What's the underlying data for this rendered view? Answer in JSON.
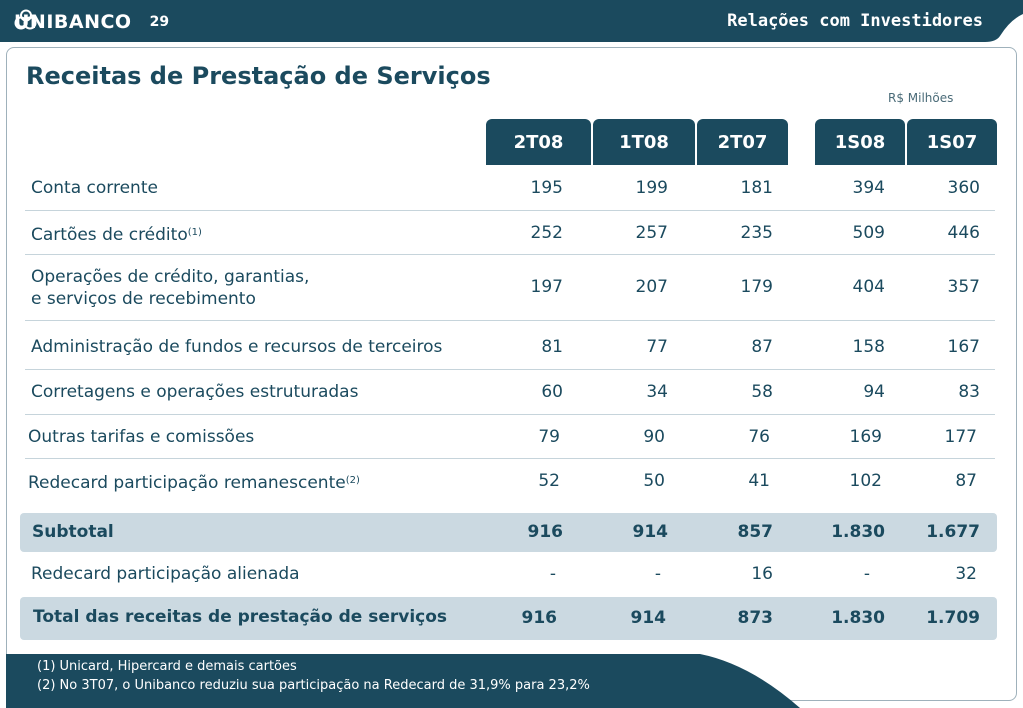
{
  "header": {
    "brand": "UNIBANCO",
    "page_number": "29",
    "section": "Relações com Investidores",
    "logo_icon": "unibanco-logo-icon"
  },
  "title": "Receitas de Prestação de Serviços",
  "unit": "R$ Milhões",
  "columns": [
    "2T08",
    "1T08",
    "2T07",
    "1S08",
    "1S07"
  ],
  "rows": [
    {
      "label": "Conta corrente",
      "note": "",
      "values": [
        "195",
        "199",
        "181",
        "394",
        "360"
      ]
    },
    {
      "label": "Cartões de crédito",
      "note": "(1)",
      "values": [
        "252",
        "257",
        "235",
        "509",
        "446"
      ]
    },
    {
      "label": "Operações de crédito, garantias,",
      "label2": "e serviços de recebimento",
      "note": "",
      "values": [
        "197",
        "207",
        "179",
        "404",
        "357"
      ]
    },
    {
      "label": "Administração de fundos e recursos de terceiros",
      "note": "",
      "values": [
        "81",
        "77",
        "87",
        "158",
        "167"
      ]
    },
    {
      "label": "Corretagens e operações estruturadas",
      "note": "",
      "values": [
        "60",
        "34",
        "58",
        "94",
        "83"
      ]
    },
    {
      "label": "Outras tarifas e comissões",
      "note": "",
      "values": [
        "79",
        "90",
        "76",
        "169",
        "177"
      ]
    },
    {
      "label": "Redecard participação remanescente",
      "note": "(2)",
      "values": [
        "52",
        "50",
        "41",
        "102",
        "87"
      ]
    }
  ],
  "subtotal": {
    "label": "Subtotal",
    "values": [
      "916",
      "914",
      "857",
      "1.830",
      "1.677"
    ]
  },
  "alienada": {
    "label": "Redecard participação alienada",
    "values": [
      "-",
      "-",
      "16",
      "-",
      "32"
    ]
  },
  "total": {
    "label": "Total das receitas de prestação de serviços",
    "values": [
      "916",
      "914",
      "873",
      "1.830",
      "1.709"
    ]
  },
  "footnotes": [
    "(1) Unicard, Hipercard e demais cartões",
    "(2) No 3T07, o Unibanco reduziu sua participação na Redecard de 31,9% para 23,2%"
  ],
  "colors": {
    "primary": "#1b4a5e",
    "band": "#cbd9e1"
  }
}
